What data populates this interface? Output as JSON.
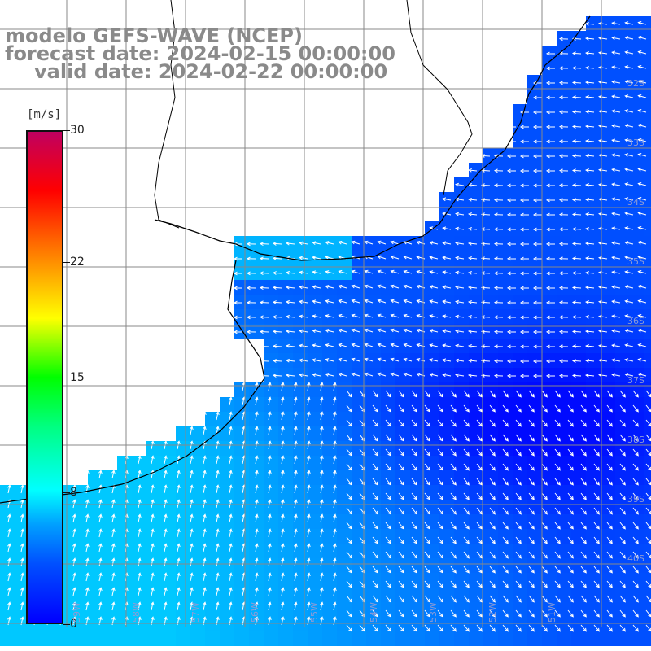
{
  "title": {
    "line1": "modelo GEFS-WAVE (NCEP)",
    "line2": "forecast date: 2024-02-15 00:00:00",
    "line3": "valid date: 2024-02-22 00:00:00"
  },
  "colorbar": {
    "unit": "[m/s]",
    "ticks": [
      {
        "label": "30",
        "value": 30
      },
      {
        "label": "22",
        "value": 22
      },
      {
        "label": "15",
        "value": 15
      },
      {
        "label": "8",
        "value": 8
      },
      {
        "label": "0",
        "value": 0
      }
    ]
  },
  "colors": {
    "land": "#ffffff",
    "grid": "#888888",
    "coast": "#000000",
    "arrow": "#ffffff",
    "low_wind": "#0000ff",
    "mid_wind": "#00c8ff"
  },
  "lat_labels": [
    "32S",
    "33S",
    "34S",
    "35S",
    "36S",
    "37S",
    "38S",
    "39S",
    "40S"
  ],
  "lon_labels": [
    "59W",
    "58W",
    "57W",
    "56W",
    "55W",
    "54W",
    "53W",
    "52W",
    "51W"
  ]
}
